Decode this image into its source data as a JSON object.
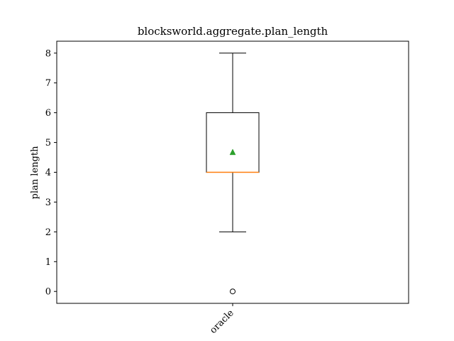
{
  "chart_data": {
    "type": "box",
    "title": "blocksworld.aggregate.plan_length",
    "xlabel": "",
    "ylabel": "plan length",
    "categories": [
      "oracle"
    ],
    "ylim": [
      -0.4,
      8.4
    ],
    "yticks": [
      0,
      1,
      2,
      3,
      4,
      5,
      6,
      7,
      8
    ],
    "grid": false,
    "boxes": [
      {
        "category": "oracle",
        "whisker_low": 2,
        "q1": 4,
        "median": 4,
        "q3": 6,
        "whisker_high": 8,
        "mean": 4.67,
        "outliers": [
          0
        ]
      }
    ],
    "colors": {
      "box": "#000000",
      "median": "#ff7f0e",
      "mean": "#2ca02c"
    }
  }
}
